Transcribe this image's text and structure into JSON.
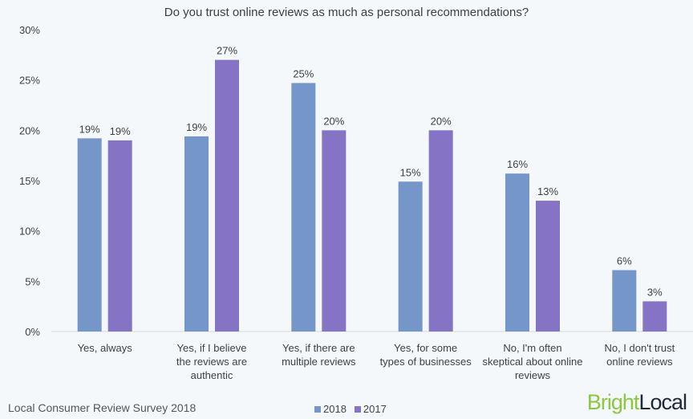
{
  "chart_data": {
    "type": "bar",
    "title": "Do you trust online reviews as much as personal recommendations?",
    "categories": [
      [
        "Yes, always"
      ],
      [
        "Yes, if I believe",
        "the reviews are",
        "authentic"
      ],
      [
        "Yes, if there are",
        "multiple reviews"
      ],
      [
        "Yes, for some",
        "types of businesses"
      ],
      [
        "No, I'm often",
        "skeptical about online",
        "reviews"
      ],
      [
        "No, I don't trust",
        "online reviews"
      ]
    ],
    "series": [
      {
        "name": "2018",
        "color": "#7596c8",
        "values": [
          19.2,
          19.4,
          24.7,
          14.9,
          15.7,
          6.1
        ],
        "labels": [
          "19%",
          "19%",
          "25%",
          "15%",
          "16%",
          "6%"
        ]
      },
      {
        "name": "2017",
        "color": "#8574c6",
        "values": [
          19.0,
          27.0,
          20.0,
          20.0,
          13.0,
          3.0
        ],
        "labels": [
          "19%",
          "27%",
          "20%",
          "20%",
          "13%",
          "3%"
        ]
      }
    ],
    "ylim": [
      0,
      30
    ],
    "yticks": [
      "0%",
      "5%",
      "10%",
      "15%",
      "20%",
      "25%",
      "30%"
    ],
    "grid": false,
    "legend": "bottom-center"
  },
  "footer": {
    "source": "Local Consumer Review Survey 2018"
  },
  "logo": {
    "part1": "Bright",
    "part2": "Local",
    "color1": "#8dc63f",
    "color2": "#1e2a3a"
  }
}
